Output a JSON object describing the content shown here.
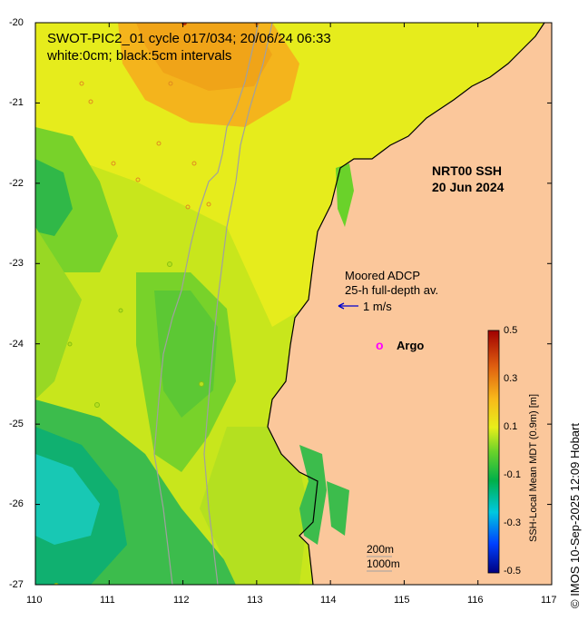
{
  "title_line1": "SWOT-PIC2_01 cycle 017/034; 20/06/24 06:33",
  "title_line2": "white:0cm; black:5cm intervals",
  "product_line1": "NRT00 SSH",
  "product_line2": "20 Jun 2024",
  "adcp_line1": "Moored ADCP",
  "adcp_line2": "25-h full-depth av.",
  "vector_scale_label": "1 m/s",
  "argo_symbol": "o",
  "argo_label": "Argo",
  "depth_contour_1": "200m",
  "depth_contour_2": "1000m",
  "credit": "© IMOS 10-Sep-2025 12:09 Hobart",
  "colorbar": {
    "label": "SSH-Local Mean MDT (0.9m) [m]",
    "ticks": [
      "0.5",
      "0.3",
      "0.1",
      "-0.1",
      "-0.3",
      "-0.5"
    ],
    "range": [
      -0.5,
      0.5
    ]
  },
  "axes": {
    "x_ticks": [
      "110",
      "111",
      "112",
      "113",
      "114",
      "115",
      "116",
      "117"
    ],
    "y_ticks": [
      "-20",
      "-21",
      "-22",
      "-23",
      "-24",
      "-25",
      "-26",
      "-27"
    ],
    "lon_range": [
      110,
      117
    ],
    "lat_range": [
      -27,
      -20
    ]
  },
  "colors": {
    "land": "#fbc79b",
    "argo": "#ff00ff",
    "vector": "#0000cc",
    "coast": "#000000",
    "bathy": "#a0a0a0"
  }
}
